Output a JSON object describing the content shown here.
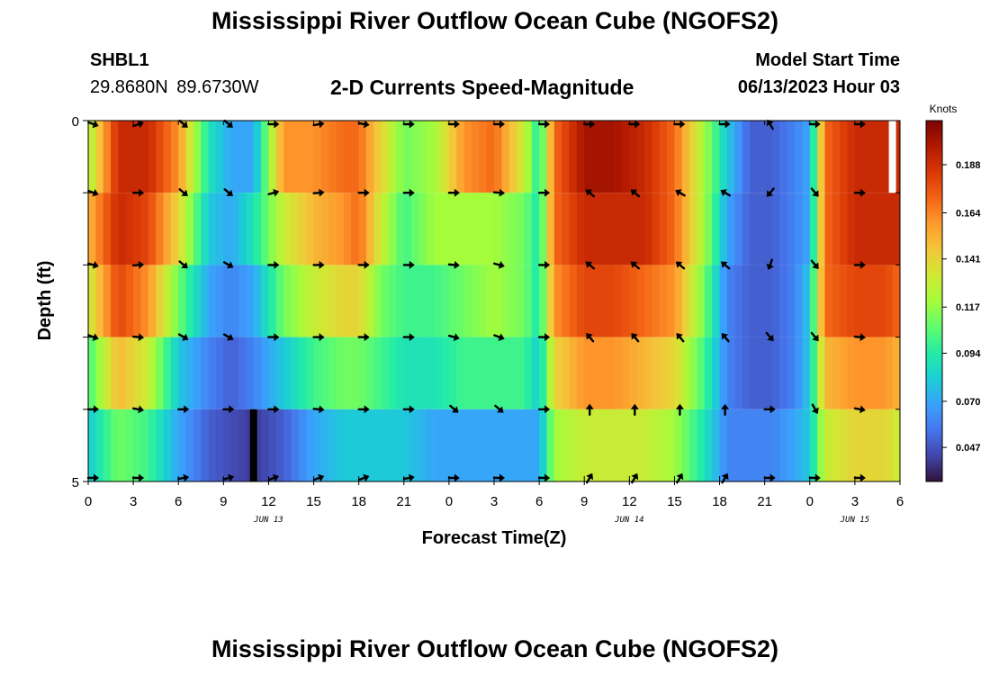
{
  "header": {
    "title": "Mississippi River Outflow Ocean Cube (NGOFS2)",
    "station_id": "SHBL1",
    "station_coords": "29.8680N  89.6730W",
    "plot_title": "2-D Currents Speed-Magnitude",
    "model_start_label": "Model Start Time",
    "model_start_value": "06/13/2023 Hour 03"
  },
  "footer": {
    "title": "Mississippi River Outflow Ocean Cube (NGOFS2)"
  },
  "chart_data": {
    "type": "heatmap",
    "xlabel": "Forecast Time(Z)",
    "ylabel": "Depth (ft)",
    "x_tick_labels": [
      "0",
      "3",
      "6",
      "9",
      "12",
      "15",
      "18",
      "21",
      "0",
      "3",
      "6",
      "9",
      "12",
      "15",
      "18",
      "21",
      "0",
      "3",
      "6"
    ],
    "x_tick_hours": [
      0,
      3,
      6,
      9,
      12,
      15,
      18,
      21,
      24,
      27,
      30,
      33,
      36,
      39,
      42,
      45,
      48,
      51,
      54
    ],
    "x_range_hours": [
      0,
      54
    ],
    "date_labels": [
      {
        "text": "JUN 13",
        "hour": 12
      },
      {
        "text": "JUN 14",
        "hour": 36
      },
      {
        "text": "JUN 15",
        "hour": 51
      }
    ],
    "y_tick_labels": [
      {
        "text": "0",
        "depth": 0
      },
      {
        "text": "5",
        "depth": 5
      }
    ],
    "y_range": [
      0,
      5
    ],
    "depth_levels": [
      0,
      1,
      2,
      3,
      4,
      5
    ],
    "colorbar": {
      "label": "Knots",
      "range": [
        0.03,
        0.21
      ],
      "ticks": [
        "0.188",
        "0.164",
        "0.141",
        "0.117",
        "0.094",
        "0.070",
        "0.047"
      ],
      "colors": [
        "#30123b",
        "#4145ab",
        "#4675ed",
        "#39a2fc",
        "#1bcfd4",
        "#24eca6",
        "#61fc6c",
        "#a4fc3b",
        "#d1e834",
        "#f3c63a",
        "#fe9b2d",
        "#f36315",
        "#d93806",
        "#b11901",
        "#7a0402"
      ]
    },
    "speed_profiles": {
      "hours": [
        0,
        2,
        4,
        6,
        8,
        9.5,
        11,
        13,
        15,
        17,
        18,
        19.5,
        21,
        23,
        25,
        27,
        29,
        30,
        31,
        33,
        35,
        37,
        39,
        41,
        42.5,
        44,
        45.5,
        47,
        48,
        49,
        51,
        53,
        54
      ],
      "rows": [
        [
          0.12,
          0.19,
          0.19,
          0.16,
          0.09,
          0.07,
          0.07,
          0.16,
          0.16,
          0.17,
          0.17,
          0.14,
          0.11,
          0.12,
          0.16,
          0.17,
          0.13,
          0.09,
          0.17,
          0.2,
          0.2,
          0.19,
          0.17,
          0.12,
          0.08,
          0.05,
          0.05,
          0.06,
          0.07,
          0.17,
          0.19,
          0.19,
          0.19
        ],
        [
          0.15,
          0.19,
          0.18,
          0.14,
          0.08,
          0.07,
          0.09,
          0.13,
          0.15,
          0.16,
          0.17,
          0.13,
          0.1,
          0.12,
          0.12,
          0.12,
          0.11,
          0.09,
          0.17,
          0.19,
          0.19,
          0.19,
          0.17,
          0.12,
          0.07,
          0.05,
          0.05,
          0.06,
          0.07,
          0.17,
          0.19,
          0.19,
          0.19
        ],
        [
          0.13,
          0.18,
          0.16,
          0.11,
          0.07,
          0.06,
          0.07,
          0.11,
          0.13,
          0.14,
          0.14,
          0.11,
          0.1,
          0.1,
          0.11,
          0.12,
          0.11,
          0.09,
          0.16,
          0.18,
          0.18,
          0.17,
          0.16,
          0.11,
          0.06,
          0.05,
          0.05,
          0.06,
          0.08,
          0.17,
          0.18,
          0.18,
          0.17
        ],
        [
          0.1,
          0.15,
          0.13,
          0.08,
          0.06,
          0.05,
          0.06,
          0.08,
          0.1,
          0.11,
          0.11,
          0.1,
          0.09,
          0.09,
          0.1,
          0.1,
          0.1,
          0.08,
          0.14,
          0.16,
          0.16,
          0.15,
          0.14,
          0.1,
          0.06,
          0.05,
          0.05,
          0.06,
          0.08,
          0.15,
          0.16,
          0.16,
          0.15
        ],
        [
          0.08,
          0.11,
          0.1,
          0.07,
          0.05,
          0.045,
          0.04,
          0.05,
          0.07,
          0.08,
          0.08,
          0.08,
          0.08,
          0.07,
          0.07,
          0.07,
          0.07,
          0.07,
          0.12,
          0.13,
          0.13,
          0.13,
          0.12,
          0.09,
          0.06,
          0.06,
          0.06,
          0.07,
          0.08,
          0.13,
          0.14,
          0.14,
          0.13
        ]
      ],
      "bottom_row": [
        0.05,
        0.07,
        0.07,
        0.06,
        0.045,
        0.04,
        0.035,
        0.04,
        0.06,
        0.06,
        0.06,
        0.06,
        0.05,
        0.06,
        0.06,
        0.06,
        0.06,
        0.06,
        0.1,
        0.11,
        0.11,
        0.11,
        0.1,
        0.09,
        0.08,
        0.08,
        0.08,
        0.08,
        0.09,
        0.1,
        0.11,
        0.11,
        0.1
      ]
    },
    "vector_columns": [
      {
        "hour": 0,
        "angles": [
          20,
          20,
          15,
          20,
          0,
          0
        ]
      },
      {
        "hour": 3,
        "angles": [
          -20,
          0,
          -5,
          5,
          10,
          0
        ]
      },
      {
        "hour": 6,
        "angles": [
          40,
          40,
          40,
          30,
          0,
          -10
        ]
      },
      {
        "hour": 9,
        "angles": [
          40,
          40,
          30,
          30,
          0,
          -15
        ]
      },
      {
        "hour": 12,
        "angles": [
          0,
          -15,
          0,
          0,
          0,
          -20
        ]
      },
      {
        "hour": 15,
        "angles": [
          -10,
          -5,
          0,
          0,
          5,
          -20
        ]
      },
      {
        "hour": 18,
        "angles": [
          10,
          0,
          0,
          0,
          0,
          -20
        ]
      },
      {
        "hour": 21,
        "angles": [
          0,
          0,
          0,
          0,
          0,
          -10
        ]
      },
      {
        "hour": 24,
        "angles": [
          0,
          0,
          5,
          15,
          40,
          0
        ]
      },
      {
        "hour": 27,
        "angles": [
          0,
          5,
          15,
          20,
          40,
          0
        ]
      },
      {
        "hour": 30,
        "angles": [
          0,
          0,
          0,
          0,
          0,
          0
        ]
      },
      {
        "hour": 33,
        "angles": [
          0,
          -140,
          -140,
          -130,
          -90,
          -60
        ]
      },
      {
        "hour": 36,
        "angles": [
          0,
          -140,
          -140,
          -130,
          -90,
          -60
        ]
      },
      {
        "hour": 39,
        "angles": [
          0,
          -150,
          -140,
          -130,
          -90,
          -60
        ]
      },
      {
        "hour": 42,
        "angles": [
          0,
          -150,
          -140,
          -130,
          -90,
          -60
        ]
      },
      {
        "hour": 45,
        "angles": [
          -120,
          130,
          110,
          50,
          0,
          0
        ]
      },
      {
        "hour": 48,
        "angles": [
          0,
          50,
          50,
          50,
          60,
          0
        ]
      },
      {
        "hour": 51,
        "angles": [
          0,
          0,
          0,
          5,
          10,
          0
        ]
      }
    ],
    "data_gaps": [
      {
        "hour": 53.5,
        "depth_from": 0,
        "depth_to": 1,
        "color": "#ffffff"
      },
      {
        "hour": 11,
        "depth_from": 4,
        "depth_to": 5,
        "color": "#000000"
      }
    ]
  }
}
